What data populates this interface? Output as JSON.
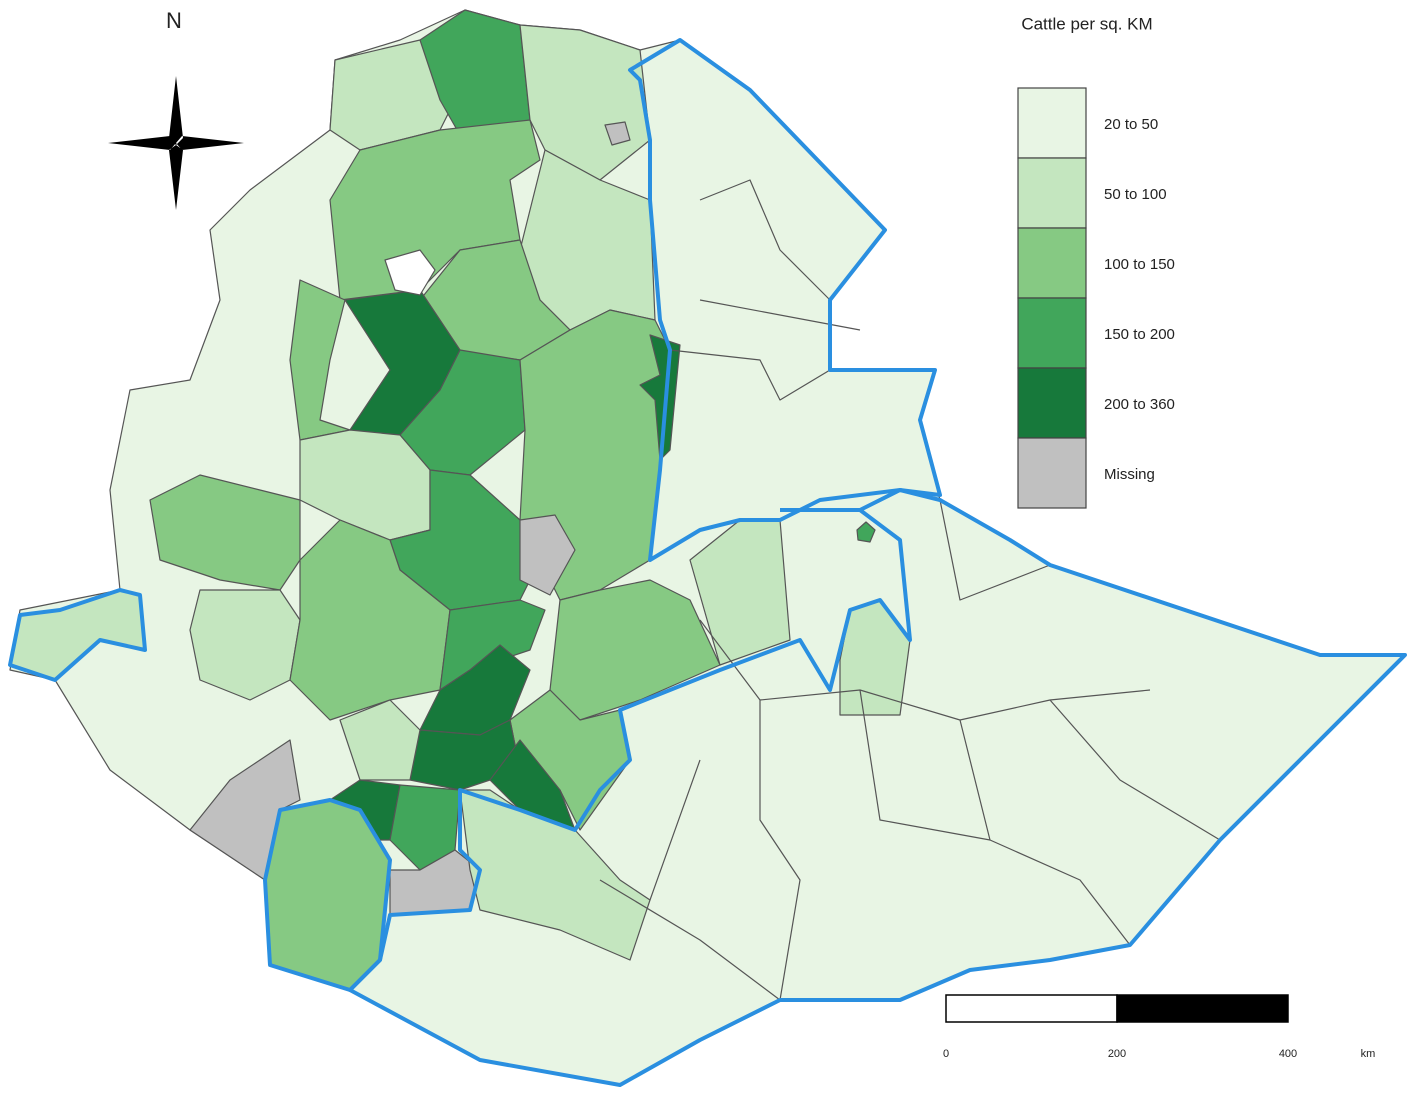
{
  "north": "N",
  "legend": {
    "title": "Cattle per sq. KM",
    "items": [
      {
        "label": "20 to 50",
        "color": "#e8f5e4"
      },
      {
        "label": "50 to 100",
        "color": "#c4e6bf"
      },
      {
        "label": "100 to 150",
        "color": "#86c983"
      },
      {
        "label": "150 to 200",
        "color": "#41a65b"
      },
      {
        "label": "200 to 360",
        "color": "#17793b"
      },
      {
        "label": "Missing",
        "color": "#c0c0c0"
      }
    ]
  },
  "scale": {
    "ticks": [
      0,
      200,
      400
    ],
    "unit": "km"
  }
}
